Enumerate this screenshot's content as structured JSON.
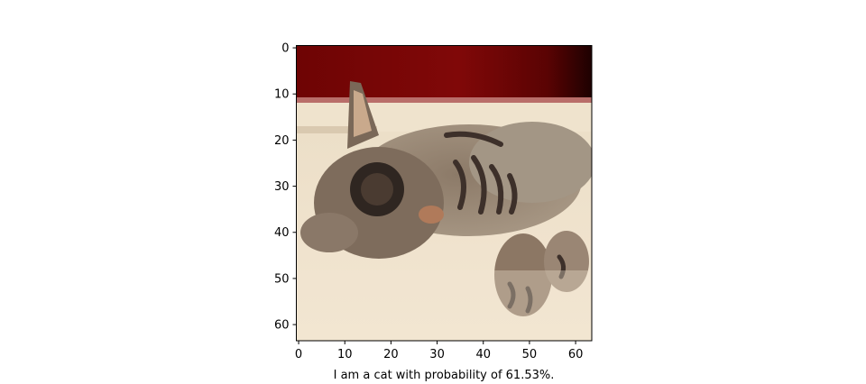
{
  "chart_data": {
    "type": "image",
    "title": "",
    "xlabel": "I am a cat with probability of 61.53%.",
    "ylabel": "",
    "xlim": [
      -0.5,
      63.5
    ],
    "ylim": [
      63.5,
      -0.5
    ],
    "xticks": [
      0,
      10,
      20,
      30,
      40,
      50,
      60
    ],
    "yticks": [
      0,
      10,
      20,
      30,
      40,
      50,
      60
    ],
    "image_size": [
      64,
      64
    ],
    "image_subject": "tabby kitten lying on its side",
    "prediction": {
      "label": "cat",
      "probability_percent": 61.53
    }
  },
  "colors": {
    "wall_red": "#7a0606",
    "wall_dark": "#2a0202",
    "floor_light": "#efe2cc",
    "cat_fur": "#8a7a6a",
    "cat_dark": "#3a2e26",
    "axis": "#000000"
  }
}
